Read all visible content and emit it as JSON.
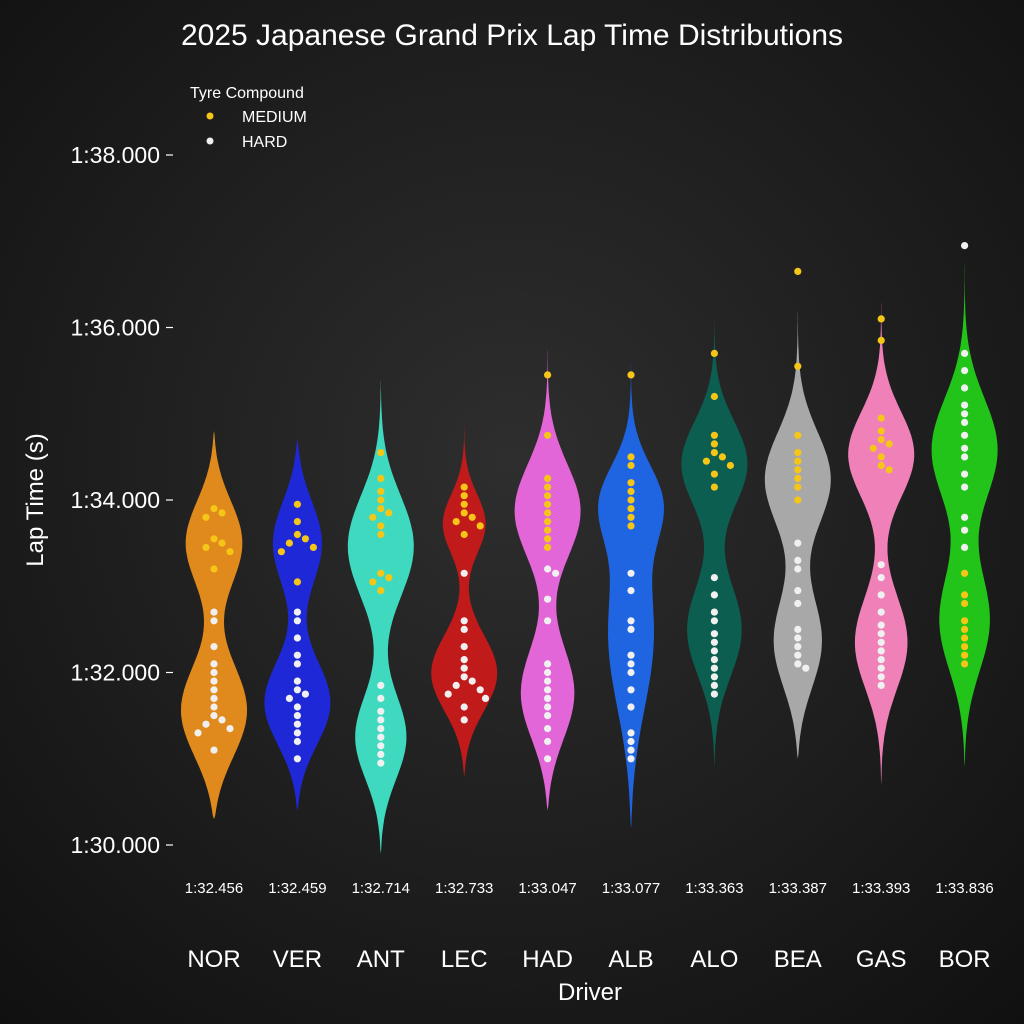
{
  "chart_data": {
    "type": "violin",
    "title": "2025 Japanese Grand Prix Lap Time Distributions",
    "xlabel": "Driver",
    "ylabel": "Lap Time (s)",
    "ylim": [
      89.8,
      98.6
    ],
    "y_ticks": [
      {
        "value": 90,
        "label": "1:30.000"
      },
      {
        "value": 92,
        "label": "1:32.000"
      },
      {
        "value": 94,
        "label": "1:34.000"
      },
      {
        "value": 96,
        "label": "1:36.000"
      },
      {
        "value": 98,
        "label": "1:38.000"
      }
    ],
    "legend": {
      "title": "Tyre Compound",
      "position": "top-left",
      "entries": [
        {
          "label": "MEDIUM",
          "color": "#f5c518"
        },
        {
          "label": "HARD",
          "color": "#f0f0f0"
        }
      ]
    },
    "drivers": [
      {
        "code": "NOR",
        "color": "#e0891c",
        "median": "1:32.456",
        "range": [
          90.3,
          94.8
        ],
        "modes": [
          {
            "c": 91.5,
            "s": 0.55,
            "w": 1.0
          },
          {
            "c": 93.55,
            "s": 0.5,
            "w": 0.85
          }
        ],
        "medium": [
          93.9,
          93.85,
          93.8,
          93.55,
          93.5,
          93.45,
          93.4,
          93.2
        ],
        "hard": [
          92.7,
          92.6,
          92.3,
          92.1,
          92.0,
          91.9,
          91.8,
          91.7,
          91.6,
          91.5,
          91.45,
          91.4,
          91.35,
          91.3,
          91.1
        ]
      },
      {
        "code": "VER",
        "color": "#1e28d6",
        "median": "1:32.459",
        "range": [
          90.4,
          94.7
        ],
        "modes": [
          {
            "c": 91.6,
            "s": 0.5,
            "w": 1.0
          },
          {
            "c": 93.55,
            "s": 0.5,
            "w": 0.75
          }
        ],
        "medium": [
          93.95,
          93.75,
          93.6,
          93.55,
          93.5,
          93.45,
          93.4,
          93.05
        ],
        "hard": [
          92.7,
          92.6,
          92.4,
          92.2,
          92.1,
          91.9,
          91.8,
          91.75,
          91.7,
          91.6,
          91.5,
          91.4,
          91.3,
          91.2,
          91.0
        ]
      },
      {
        "code": "ANT",
        "color": "#3fd9c0",
        "median": "1:32.714",
        "range": [
          89.9,
          95.4
        ],
        "modes": [
          {
            "c": 91.2,
            "s": 0.5,
            "w": 0.85
          },
          {
            "c": 93.5,
            "s": 0.6,
            "w": 1.0
          }
        ],
        "medium": [
          94.55,
          94.25,
          94.1,
          94.0,
          93.9,
          93.85,
          93.8,
          93.7,
          93.6,
          93.15,
          93.1,
          93.05,
          92.95
        ],
        "hard": [
          91.85,
          91.7,
          91.55,
          91.45,
          91.35,
          91.25,
          91.15,
          91.05,
          90.95
        ]
      },
      {
        "code": "LEC",
        "color": "#c01a1a",
        "median": "1:32.733",
        "range": [
          90.8,
          94.9
        ],
        "modes": [
          {
            "c": 91.95,
            "s": 0.45,
            "w": 1.0
          },
          {
            "c": 93.75,
            "s": 0.35,
            "w": 0.65
          }
        ],
        "medium": [
          94.15,
          94.05,
          93.95,
          93.85,
          93.8,
          93.75,
          93.7,
          93.6
        ],
        "hard": [
          93.15,
          92.6,
          92.5,
          92.3,
          92.15,
          92.05,
          91.95,
          91.9,
          91.85,
          91.8,
          91.75,
          91.7,
          91.6,
          91.45
        ]
      },
      {
        "code": "HAD",
        "color": "#e366d8",
        "median": "1:33.047",
        "range": [
          90.4,
          95.9
        ],
        "modes": [
          {
            "c": 91.7,
            "s": 0.55,
            "w": 0.85
          },
          {
            "c": 93.9,
            "s": 0.55,
            "w": 0.95
          }
        ],
        "medium": [
          95.45,
          94.75,
          94.25,
          94.15,
          94.05,
          93.95,
          93.85,
          93.75,
          93.65,
          93.55,
          93.45
        ],
        "hard": [
          93.2,
          93.15,
          92.85,
          92.6,
          92.1,
          92.0,
          91.9,
          91.8,
          91.7,
          91.6,
          91.5,
          91.35,
          91.2,
          91.0
        ]
      },
      {
        "code": "ALB",
        "color": "#1f64e0",
        "median": "1:33.077",
        "range": [
          90.2,
          95.9
        ],
        "modes": [
          {
            "c": 92.4,
            "s": 0.9,
            "w": 0.8
          },
          {
            "c": 94.0,
            "s": 0.45,
            "w": 1.0
          }
        ],
        "medium": [
          95.45,
          94.5,
          94.4,
          94.2,
          94.1,
          94.0,
          93.9,
          93.8,
          93.7
        ],
        "hard": [
          93.15,
          92.95,
          92.6,
          92.5,
          92.2,
          92.1,
          92.0,
          91.8,
          91.6,
          91.3,
          91.2,
          91.1,
          91.0
        ]
      },
      {
        "code": "ALO",
        "color": "#0b5e50",
        "median": "1:33.363",
        "range": [
          90.9,
          96.2
        ],
        "modes": [
          {
            "c": 92.45,
            "s": 0.55,
            "w": 0.85
          },
          {
            "c": 94.45,
            "s": 0.5,
            "w": 1.0
          }
        ],
        "medium": [
          95.7,
          95.2,
          94.75,
          94.65,
          94.55,
          94.5,
          94.45,
          94.4,
          94.3,
          94.15
        ],
        "hard": [
          93.1,
          92.9,
          92.7,
          92.6,
          92.45,
          92.35,
          92.25,
          92.15,
          92.05,
          91.95,
          91.85,
          91.75
        ]
      },
      {
        "code": "BEA",
        "color": "#a8a8a8",
        "median": "1:33.387",
        "range": [
          91.0,
          97.0
        ],
        "modes": [
          {
            "c": 92.3,
            "s": 0.55,
            "w": 0.85
          },
          {
            "c": 94.25,
            "s": 0.55,
            "w": 1.0
          }
        ],
        "medium": [
          96.65,
          95.55,
          94.75,
          94.55,
          94.45,
          94.35,
          94.25,
          94.15,
          94.0
        ],
        "hard": [
          93.5,
          93.3,
          93.2,
          92.95,
          92.8,
          92.5,
          92.4,
          92.3,
          92.2,
          92.1,
          92.05
        ]
      },
      {
        "code": "GAS",
        "color": "#f080b8",
        "median": "1:33.393",
        "range": [
          90.7,
          96.7
        ],
        "modes": [
          {
            "c": 92.3,
            "s": 0.55,
            "w": 0.85
          },
          {
            "c": 94.55,
            "s": 0.5,
            "w": 1.0
          }
        ],
        "medium": [
          96.1,
          95.85,
          94.95,
          94.8,
          94.7,
          94.65,
          94.6,
          94.5,
          94.4,
          94.35
        ],
        "hard": [
          93.25,
          93.1,
          92.9,
          92.7,
          92.55,
          92.45,
          92.35,
          92.25,
          92.15,
          92.05,
          91.95,
          91.85
        ]
      },
      {
        "code": "BOR",
        "color": "#22c41a",
        "median": "1:33.836",
        "range": [
          90.9,
          97.4
        ],
        "modes": [
          {
            "c": 92.55,
            "s": 0.6,
            "w": 0.85
          },
          {
            "c": 94.6,
            "s": 0.6,
            "w": 1.0
          }
        ],
        "medium": [
          93.15,
          92.9,
          92.8,
          92.6,
          92.5,
          92.4,
          92.3,
          92.2,
          92.1
        ],
        "hard": [
          96.95,
          95.7,
          95.5,
          95.3,
          95.1,
          95.0,
          94.9,
          94.75,
          94.6,
          94.5,
          94.3,
          94.15,
          93.8,
          93.65,
          93.45
        ]
      }
    ]
  }
}
